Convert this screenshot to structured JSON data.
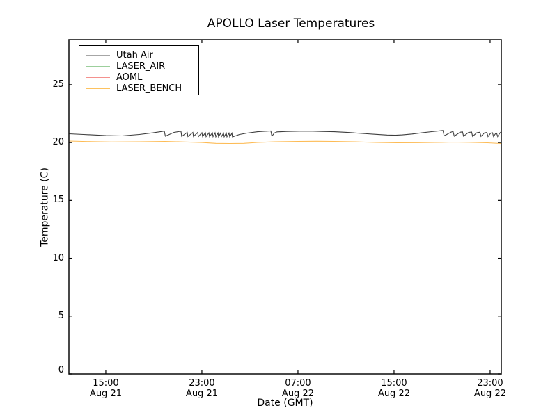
{
  "chart_data": {
    "type": "line",
    "title": "APOLLO Laser Temperatures",
    "xlabel": "Date (GMT)",
    "ylabel": "Temperature (C)",
    "x_unit": "hours since Aug 21 00:00 GMT",
    "xlim": [
      11.93,
      47.93
    ],
    "ylim": [
      0,
      28.9
    ],
    "grid": false,
    "legend_position": "upper left",
    "y_ticks": [
      0,
      5,
      10,
      15,
      20,
      25
    ],
    "x_ticks": [
      {
        "value": 15,
        "line1": "15:00",
        "line2": "Aug 21"
      },
      {
        "value": 23,
        "line1": "23:00",
        "line2": "Aug 21"
      },
      {
        "value": 31,
        "line1": "07:00",
        "line2": "Aug 22"
      },
      {
        "value": 39,
        "line1": "15:00",
        "line2": "Aug 22"
      },
      {
        "value": 47,
        "line1": "23:00",
        "line2": "Aug 22"
      }
    ],
    "series": [
      {
        "name": "Utah Air",
        "color": "#3d3d3d",
        "legend_color": "#a6a6a6",
        "opacity": 1,
        "points": [
          [
            11.93,
            20.76
          ],
          [
            13.15,
            20.7
          ],
          [
            15.0,
            20.6
          ],
          [
            16.34,
            20.58
          ],
          [
            17.79,
            20.7
          ],
          [
            18.94,
            20.84
          ],
          [
            19.87,
            20.99
          ],
          [
            19.96,
            20.55
          ],
          [
            20.68,
            20.88
          ],
          [
            21.26,
            20.98
          ],
          [
            21.32,
            20.53
          ],
          [
            21.78,
            20.88
          ],
          [
            21.84,
            20.52
          ],
          [
            22.25,
            20.88
          ],
          [
            22.3,
            20.52
          ],
          [
            22.65,
            20.87
          ],
          [
            22.71,
            20.52
          ],
          [
            23.0,
            20.85
          ],
          [
            23.06,
            20.52
          ],
          [
            23.29,
            20.85
          ],
          [
            23.35,
            20.51
          ],
          [
            23.58,
            20.84
          ],
          [
            23.64,
            20.51
          ],
          [
            23.87,
            20.84
          ],
          [
            23.93,
            20.51
          ],
          [
            24.1,
            20.84
          ],
          [
            24.16,
            20.5
          ],
          [
            24.34,
            20.83
          ],
          [
            24.39,
            20.5
          ],
          [
            24.57,
            20.83
          ],
          [
            24.62,
            20.5
          ],
          [
            24.8,
            20.82
          ],
          [
            24.86,
            20.5
          ],
          [
            25.03,
            20.82
          ],
          [
            25.09,
            20.5
          ],
          [
            25.26,
            20.82
          ],
          [
            25.32,
            20.49
          ],
          [
            25.5,
            20.82
          ],
          [
            25.55,
            20.49
          ],
          [
            26.13,
            20.7
          ],
          [
            26.77,
            20.82
          ],
          [
            27.64,
            20.93
          ],
          [
            28.51,
            20.99
          ],
          [
            28.74,
            21.0
          ],
          [
            28.83,
            20.55
          ],
          [
            29.03,
            20.82
          ],
          [
            29.26,
            20.92
          ],
          [
            30.07,
            20.96
          ],
          [
            31.12,
            20.98
          ],
          [
            31.99,
            20.99
          ],
          [
            32.97,
            20.96
          ],
          [
            34.02,
            20.93
          ],
          [
            35.17,
            20.87
          ],
          [
            36.33,
            20.79
          ],
          [
            37.49,
            20.71
          ],
          [
            38.42,
            20.65
          ],
          [
            39.12,
            20.63
          ],
          [
            39.7,
            20.66
          ],
          [
            40.51,
            20.74
          ],
          [
            41.32,
            20.84
          ],
          [
            42.13,
            20.94
          ],
          [
            42.88,
            21.02
          ],
          [
            43.08,
            21.04
          ],
          [
            43.17,
            20.58
          ],
          [
            43.75,
            20.9
          ],
          [
            43.92,
            20.95
          ],
          [
            44.01,
            20.55
          ],
          [
            44.5,
            20.89
          ],
          [
            44.7,
            20.92
          ],
          [
            44.79,
            20.54
          ],
          [
            45.2,
            20.87
          ],
          [
            45.46,
            20.91
          ],
          [
            45.54,
            20.53
          ],
          [
            45.89,
            20.85
          ],
          [
            46.15,
            20.89
          ],
          [
            46.24,
            20.53
          ],
          [
            46.53,
            20.84
          ],
          [
            46.73,
            20.87
          ],
          [
            46.82,
            20.52
          ],
          [
            47.05,
            20.82
          ],
          [
            47.2,
            20.85
          ],
          [
            47.28,
            20.52
          ],
          [
            47.46,
            20.79
          ],
          [
            47.54,
            20.81
          ],
          [
            47.63,
            20.52
          ],
          [
            47.81,
            20.82
          ],
          [
            47.89,
            20.9
          ]
        ]
      },
      {
        "name": "LASER_AIR",
        "color": "#9ccf9c",
        "legend_color": "#9ccf9c",
        "opacity": 0.35,
        "points": [
          [
            11.93,
            0
          ],
          [
            47.93,
            0
          ]
        ]
      },
      {
        "name": "AOML",
        "color": "#f08080",
        "legend_color": "#f4918e",
        "opacity": 0.45,
        "points": [
          [
            11.93,
            0
          ],
          [
            47.93,
            0
          ]
        ]
      },
      {
        "name": "LASER_BENCH",
        "color": "#fdbb54",
        "legend_color": "#fdc25f",
        "opacity": 1,
        "points": [
          [
            11.93,
            20.13
          ],
          [
            13.73,
            20.08
          ],
          [
            15.46,
            20.05
          ],
          [
            17.78,
            20.07
          ],
          [
            19.93,
            20.1
          ],
          [
            21.55,
            20.05
          ],
          [
            23.0,
            20.0
          ],
          [
            24.16,
            19.93
          ],
          [
            25.32,
            19.92
          ],
          [
            26.48,
            19.93
          ],
          [
            27.64,
            20.01
          ],
          [
            29.09,
            20.07
          ],
          [
            31.0,
            20.1
          ],
          [
            32.57,
            20.11
          ],
          [
            34.02,
            20.1
          ],
          [
            35.75,
            20.06
          ],
          [
            37.49,
            20.01
          ],
          [
            39.23,
            19.98
          ],
          [
            40.97,
            19.99
          ],
          [
            42.42,
            20.01
          ],
          [
            43.87,
            20.04
          ],
          [
            45.32,
            20.02
          ],
          [
            46.77,
            19.98
          ],
          [
            47.89,
            19.92
          ]
        ]
      }
    ]
  }
}
